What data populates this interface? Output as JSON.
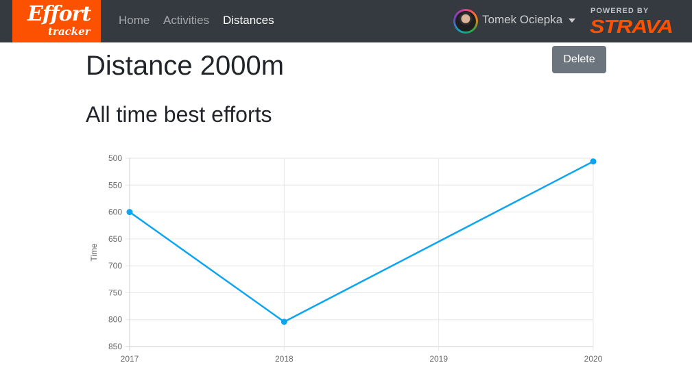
{
  "navbar": {
    "logo": {
      "main": "Effort",
      "sub": "tracker"
    },
    "links": [
      {
        "label": "Home",
        "active": false
      },
      {
        "label": "Activities",
        "active": false
      },
      {
        "label": "Distances",
        "active": true
      }
    ],
    "user": {
      "name": "Tomek Ociepka"
    },
    "powered_by": {
      "text": "POWERED BY",
      "brand": "STRAVA"
    }
  },
  "page": {
    "title": "Distance 2000m",
    "subtitle": "All time best efforts",
    "delete_label": "Delete"
  },
  "colors": {
    "accent": "#fc5200",
    "line": "#0ea5f0",
    "navbar": "#343a40",
    "button": "#6c757d"
  },
  "chart_data": {
    "type": "line",
    "x": [
      "2017",
      "2018",
      "2019",
      "2020"
    ],
    "series": [
      {
        "values": [
          600,
          804,
          null,
          506
        ]
      }
    ],
    "ylabel": "Time",
    "xlabel": "",
    "ylim": [
      500,
      850
    ],
    "y_reversed": true,
    "yticks": [
      500,
      550,
      600,
      650,
      700,
      750,
      800,
      850
    ],
    "grid": true,
    "legend": "none"
  }
}
